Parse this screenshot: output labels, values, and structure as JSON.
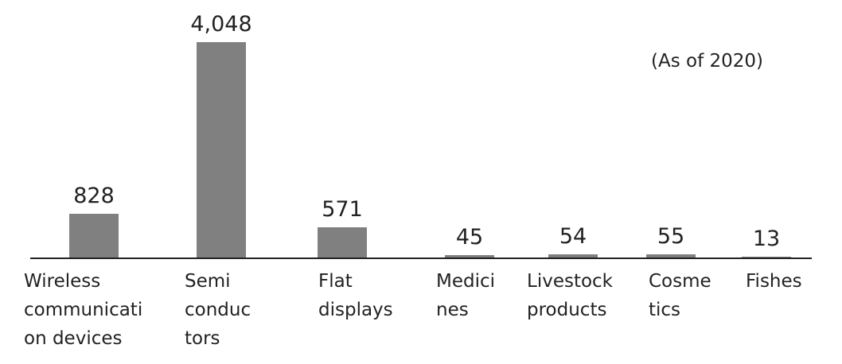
{
  "chart_data": {
    "type": "bar",
    "annotation": "(As of 2020)",
    "categories": [
      "Wireless\ncommunicati\non devices",
      "Semi\nconduc\ntors",
      "Flat\ndisplays",
      "Medici\nnes",
      "Livestock\nproducts",
      "Cosme\ntics",
      "Fishes"
    ],
    "values": [
      828,
      4048,
      571,
      45,
      54,
      55,
      13
    ],
    "value_labels": [
      "828",
      "4,048",
      "571",
      "45",
      "54",
      "55",
      "13"
    ],
    "color": "#808080"
  }
}
